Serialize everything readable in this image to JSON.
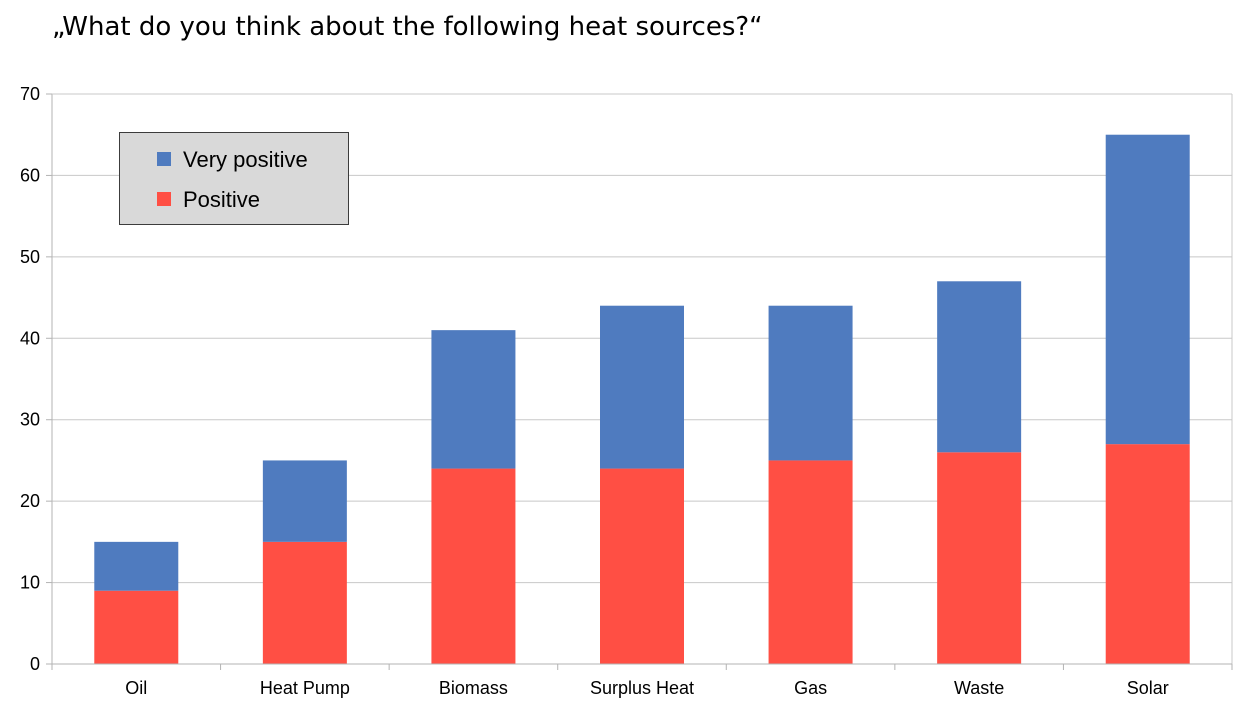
{
  "chart_data": {
    "type": "bar",
    "stacked": true,
    "title": "„What do you think about the following heat sources?“",
    "xlabel": "",
    "ylabel": "",
    "categories": [
      "Oil",
      "Heat Pump",
      "Biomass",
      "Surplus Heat",
      "Gas",
      "Waste",
      "Solar"
    ],
    "series": [
      {
        "name": "Positive",
        "color": "#ff4f44",
        "values": [
          9,
          15,
          24,
          24,
          25,
          26,
          27
        ]
      },
      {
        "name": "Very positive",
        "color": "#4f7bbf",
        "values": [
          6,
          10,
          17,
          20,
          19,
          21,
          38
        ]
      }
    ],
    "ylim": [
      0,
      70
    ],
    "yticks": [
      0,
      10,
      20,
      30,
      40,
      50,
      60,
      70
    ],
    "grid": true,
    "legend": {
      "placement": "top-left",
      "entries": [
        "Very positive",
        "Positive"
      ]
    }
  }
}
